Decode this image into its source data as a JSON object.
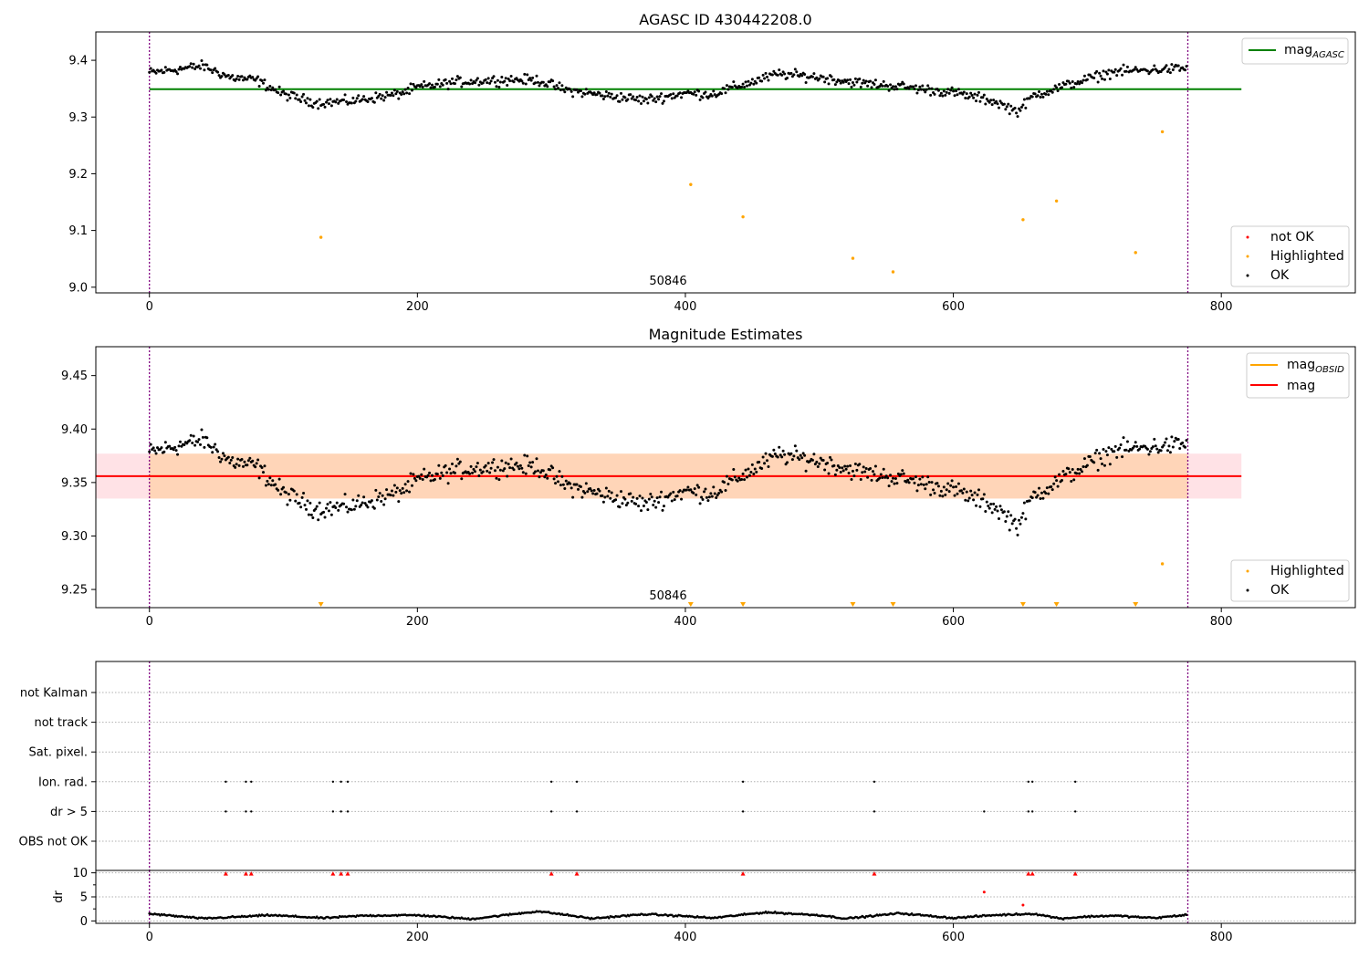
{
  "chart_data": [
    {
      "type": "scatter",
      "title": "AGASC ID 430442208.0",
      "xlabel": "",
      "ylabel": "",
      "xlim": [
        -40,
        900
      ],
      "ylim": [
        8.99,
        9.45
      ],
      "xticks": [
        0,
        200,
        400,
        600,
        800
      ],
      "yticks": [
        9.0,
        9.1,
        9.2,
        9.3,
        9.4
      ],
      "ytick_labels": [
        "9.0",
        "9.1",
        "9.2",
        "9.3",
        "9.4"
      ],
      "obsid_boundaries": [
        0,
        775
      ],
      "obsid_label": {
        "text": "50846",
        "x": 388
      },
      "reference_lines": [
        {
          "name": "mag",
          "subscript": "AGASC",
          "value": 9.349,
          "x_range": [
            0,
            815
          ],
          "color": "#008000"
        }
      ],
      "series": [
        {
          "name": "not OK",
          "color": "#ff0000",
          "points": []
        },
        {
          "name": "Highlighted",
          "color": "#ffa500",
          "x": [
            128,
            404,
            443,
            525,
            555,
            652,
            677,
            736,
            756
          ],
          "y": [
            9.088,
            9.181,
            9.124,
            9.051,
            9.027,
            9.119,
            9.152,
            9.061,
            9.274
          ]
        },
        {
          "name": "OK",
          "color": "#000000",
          "trend": [
            [
              0,
              9.378
            ],
            [
              40,
              9.39
            ],
            [
              60,
              9.37
            ],
            [
              80,
              9.365
            ],
            [
              100,
              9.34
            ],
            [
              125,
              9.325
            ],
            [
              150,
              9.328
            ],
            [
              185,
              9.34
            ],
            [
              200,
              9.352
            ],
            [
              230,
              9.362
            ],
            [
              270,
              9.366
            ],
            [
              290,
              9.365
            ],
            [
              310,
              9.348
            ],
            [
              340,
              9.338
            ],
            [
              370,
              9.33
            ],
            [
              400,
              9.342
            ],
            [
              420,
              9.34
            ],
            [
              440,
              9.355
            ],
            [
              470,
              9.376
            ],
            [
              500,
              9.37
            ],
            [
              530,
              9.36
            ],
            [
              560,
              9.354
            ],
            [
              600,
              9.343
            ],
            [
              630,
              9.328
            ],
            [
              648,
              9.31
            ],
            [
              660,
              9.338
            ],
            [
              690,
              9.36
            ],
            [
              720,
              9.38
            ],
            [
              775,
              9.386
            ]
          ],
          "n_points": 775
        }
      ],
      "legend": [
        {
          "label": "mag",
          "subscript": "AGASC",
          "color": "#008000",
          "kind": "line"
        },
        {
          "label": "not OK",
          "color": "#ff0000",
          "kind": "marker"
        },
        {
          "label": "Highlighted",
          "color": "#ffa500",
          "kind": "marker"
        },
        {
          "label": "OK",
          "color": "#000000",
          "kind": "marker"
        }
      ],
      "legend_position": [
        "top-right",
        "bottom-right"
      ]
    },
    {
      "type": "scatter",
      "title": "Magnitude Estimates",
      "xlabel": "",
      "ylabel": "",
      "xlim": [
        -40,
        900
      ],
      "ylim": [
        9.233,
        9.477
      ],
      "xticks": [
        0,
        200,
        400,
        600,
        800
      ],
      "yticks": [
        9.25,
        9.3,
        9.35,
        9.4,
        9.45
      ],
      "ytick_labels": [
        "9.25",
        "9.30",
        "9.35",
        "9.40",
        "9.45"
      ],
      "obsid_boundaries": [
        0,
        775
      ],
      "obsid_label": {
        "text": "50846",
        "x": 388
      },
      "reference_lines": [
        {
          "name": "mag",
          "subscript": "OBSID",
          "value": 9.356,
          "x_range": [
            0,
            775
          ],
          "color": "#ffa500",
          "band": [
            9.335,
            9.377
          ]
        },
        {
          "name": "mag",
          "value": 9.356,
          "x_range": [
            -40,
            815
          ],
          "color": "#ff0000",
          "band": [
            9.335,
            9.377
          ]
        }
      ],
      "series": [
        {
          "name": "Highlighted",
          "color": "#ffa500",
          "x": [
            756
          ],
          "y": [
            9.274
          ]
        },
        {
          "name": "Highlighted (below range)",
          "color": "#ffa500",
          "x": [
            128,
            404,
            443,
            525,
            555,
            652,
            677,
            736
          ],
          "y_marker": "lower-limit"
        },
        {
          "name": "OK",
          "color": "#000000",
          "same_trend_as_panel": 0,
          "n_points": 775
        }
      ],
      "legend": [
        {
          "label": "mag",
          "subscript": "OBSID",
          "color": "#ffa500",
          "kind": "line"
        },
        {
          "label": "mag",
          "color": "#ff0000",
          "kind": "line"
        },
        {
          "label": "Highlighted",
          "color": "#ffa500",
          "kind": "marker"
        },
        {
          "label": "OK",
          "color": "#000000",
          "kind": "marker"
        }
      ],
      "legend_position": [
        "top-right",
        "bottom-right"
      ]
    },
    {
      "type": "scatter",
      "title": "",
      "xlim": [
        -40,
        900
      ],
      "xticks": [
        0,
        200,
        400,
        600,
        800
      ],
      "obsid_boundaries": [
        0,
        775
      ],
      "flag_rows": [
        "not Kalman",
        "not track",
        "Sat. pixel.",
        "Ion. rad.",
        "dr > 5",
        "OBS not OK"
      ],
      "flags": {
        "Ion. rad.": [
          57,
          72,
          76,
          137,
          143,
          148,
          300,
          319,
          443,
          541,
          656,
          659,
          691
        ],
        "dr > 5": [
          57,
          72,
          76,
          137,
          143,
          148,
          300,
          319,
          443,
          541,
          623,
          656,
          659,
          691
        ]
      }
    },
    {
      "type": "scatter",
      "title": "",
      "ylabel": "dr",
      "xlim": [
        -40,
        900
      ],
      "ylim": [
        -0.5,
        10.5
      ],
      "xticks": [
        0,
        200,
        400,
        600,
        800
      ],
      "yticks": [
        0,
        5,
        10
      ],
      "obsid_boundaries": [
        0,
        775
      ],
      "clipped_points": {
        "color": "#ff0000",
        "x": [
          57,
          72,
          76,
          137,
          143,
          148,
          300,
          319,
          443,
          541,
          656,
          659,
          691
        ],
        "y": 10
      },
      "high_points": {
        "color": "#ff0000",
        "x": [
          623,
          652
        ],
        "y": [
          6.0,
          3.3
        ]
      },
      "trend": [
        [
          0,
          1.5
        ],
        [
          20,
          1.0
        ],
        [
          40,
          0.5
        ],
        [
          70,
          0.9
        ],
        [
          90,
          1.2
        ],
        [
          130,
          0.6
        ],
        [
          160,
          1.1
        ],
        [
          200,
          1.2
        ],
        [
          240,
          0.4
        ],
        [
          290,
          2.0
        ],
        [
          310,
          1.3
        ],
        [
          330,
          0.5
        ],
        [
          370,
          1.4
        ],
        [
          400,
          1.0
        ],
        [
          420,
          0.6
        ],
        [
          460,
          1.8
        ],
        [
          500,
          1.2
        ],
        [
          520,
          0.5
        ],
        [
          560,
          1.6
        ],
        [
          600,
          0.6
        ],
        [
          630,
          1.2
        ],
        [
          660,
          1.5
        ],
        [
          680,
          0.5
        ],
        [
          700,
          0.9
        ],
        [
          720,
          1.1
        ],
        [
          750,
          0.6
        ],
        [
          775,
          1.3
        ]
      ]
    }
  ]
}
